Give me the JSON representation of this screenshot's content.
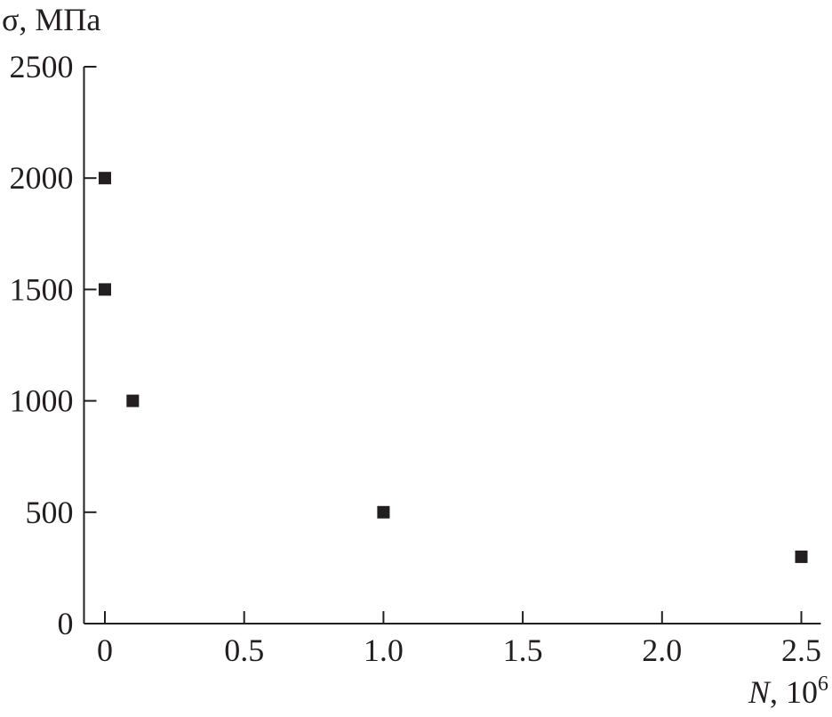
{
  "chart_data": {
    "type": "scatter",
    "title": "",
    "ylabel": "σ, МПа",
    "xlabel_var": "N",
    "xlabel_unit": ", 10",
    "xlabel_exp": "6",
    "xlim": [
      -0.075,
      2.57
    ],
    "ylim": [
      0,
      2500
    ],
    "xticks": [
      0,
      0.5,
      1.0,
      1.5,
      2.0,
      2.5
    ],
    "xtick_labels": [
      "0",
      "0.5",
      "1.0",
      "1.5",
      "2.0",
      "2.5"
    ],
    "yticks": [
      0,
      500,
      1000,
      1500,
      2000,
      2500
    ],
    "ytick_labels": [
      "0",
      "500",
      "1000",
      "1500",
      "2000",
      "2500"
    ],
    "grid": false,
    "marker": "square",
    "color": "#231f20",
    "points": [
      {
        "x": 0,
        "y": 2000
      },
      {
        "x": 0,
        "y": 1500
      },
      {
        "x": 0.1,
        "y": 1000
      },
      {
        "x": 1.0,
        "y": 500
      },
      {
        "x": 2.5,
        "y": 300
      }
    ]
  }
}
